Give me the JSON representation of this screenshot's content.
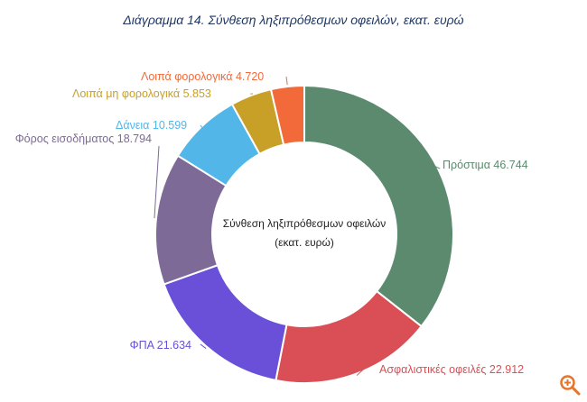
{
  "page": {
    "title": "Διάγραμμα 14. Σύνθεση ληξιπρόθεσμων οφειλών, εκατ. ευρώ"
  },
  "chart_data": {
    "type": "pie",
    "center_label": [
      "Σύνθεση ληξιπρόθεσμων οφειλών",
      "(εκατ. ευρώ)"
    ],
    "series": [
      {
        "name": "Πρόστιμα",
        "value": 46.744,
        "display": "46.744",
        "color": "#5b8a6e"
      },
      {
        "name": "Ασφαλιστικές οφειλές",
        "value": 22.912,
        "display": "22.912",
        "color": "#d94f55"
      },
      {
        "name": "ΦΠΑ",
        "value": 21.634,
        "display": "21.634",
        "color": "#6a4fd9"
      },
      {
        "name": "Φόρος εισοδήματος",
        "value": 18.794,
        "display": "18.794",
        "color": "#7d6a96"
      },
      {
        "name": "Δάνεια",
        "value": 10.599,
        "display": "10.599",
        "color": "#52b7e8"
      },
      {
        "name": "Λοιπά μη φορολογικά",
        "value": 5.853,
        "display": "5.853",
        "color": "#c8a028"
      },
      {
        "name": "Λοιπά φορολογικά",
        "value": 4.72,
        "display": "4.720",
        "color": "#f26a3a"
      }
    ]
  },
  "controls": {
    "zoom_icon": "zoom-in-icon",
    "zoom_color": "#e8742a"
  }
}
